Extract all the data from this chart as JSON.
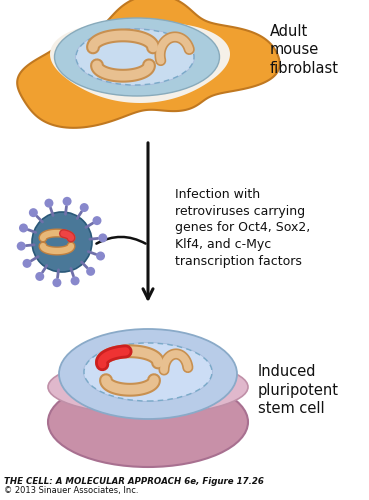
{
  "caption_bold": "THE CELL: A MOLECULAR APPROACH 6e, Figure 17.26",
  "caption_normal": "© 2013 Sinauer Associates, Inc.",
  "label_fibroblast": "Adult\nmouse\nfibroblast",
  "label_infection": "Infection with\nretroviruses carrying\ngenes for Oct4, Sox2,\nKlf4, and c-Myc\ntranscription factors",
  "label_stemcell": "Induced\npluripotent\nstem cell",
  "colors": {
    "cell_outer": "#F0A030",
    "cell_outer_edge": "#C07820",
    "cell_white": "#F5F0E8",
    "cell_inner_bg": "#AACCDD",
    "cell_inner_edge": "#88AABB",
    "nucleus_bg": "#C8DCF0",
    "nucleus_darker": "#AABEDE",
    "nucleus_border": "#7AAAC8",
    "mito_fill": "#E8C090",
    "mito_border": "#C89050",
    "virus_body": "#4A7898",
    "virus_body_edge": "#2A5878",
    "virus_spike_line": "#7070AA",
    "virus_spike_ball": "#8888CC",
    "virus_rna_red": "#CC3030",
    "virus_mito_fill": "#E8B878",
    "virus_mito_border": "#C08040",
    "dish_bottom": "#C890A8",
    "dish_bottom_edge": "#A87090",
    "dish_top": "#E0B8CC",
    "dish_top_edge": "#C090A8",
    "sc_cell_bg": "#B8CCE8",
    "sc_cell_edge": "#8AAAC8",
    "sc_nucleus_bg": "#CCDDF5",
    "sc_nucleus_darker": "#AABEDE",
    "sc_nucleus_edge": "#7AAAC8",
    "red_spot": "#CC2020",
    "arrow_color": "#111111",
    "text_color": "#111111"
  }
}
